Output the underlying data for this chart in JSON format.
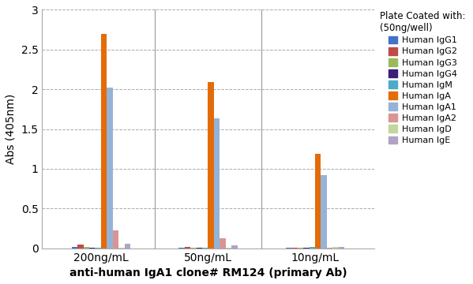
{
  "title": "",
  "xlabel": "anti-human IgA1 clone# RM124 (primary Ab)",
  "ylabel": "Abs (405nm)",
  "legend_title": "Plate Coated with:\n(50ng/well)",
  "groups": [
    "200ng/mL",
    "50ng/mL",
    "10ng/mL"
  ],
  "series": [
    {
      "label": "Human IgG1",
      "color": "#4472C4",
      "values": [
        0.02,
        0.01,
        0.01
      ]
    },
    {
      "label": "Human IgG2",
      "color": "#BE4B48",
      "values": [
        0.05,
        0.02,
        0.01
      ]
    },
    {
      "label": "Human IgG3",
      "color": "#9BBB59",
      "values": [
        0.02,
        0.01,
        0.01
      ]
    },
    {
      "label": "Human IgG4",
      "color": "#3B1F7A",
      "values": [
        0.01,
        0.01,
        0.01
      ]
    },
    {
      "label": "Human IgM",
      "color": "#4BACC6",
      "values": [
        0.01,
        0.01,
        0.02
      ]
    },
    {
      "label": "Human IgA",
      "color": "#E36C09",
      "values": [
        2.7,
        2.09,
        1.19
      ]
    },
    {
      "label": "Human IgA1",
      "color": "#95B3D7",
      "values": [
        2.02,
        1.63,
        0.92
      ]
    },
    {
      "label": "Human IgA2",
      "color": "#D99594",
      "values": [
        0.22,
        0.13,
        0.01
      ]
    },
    {
      "label": "Human IgD",
      "color": "#C3D69B",
      "values": [
        0.01,
        0.01,
        0.02
      ]
    },
    {
      "label": "Human IgE",
      "color": "#B2A2C7",
      "values": [
        0.06,
        0.04,
        0.02
      ]
    }
  ],
  "ylim": [
    0,
    3.0
  ],
  "yticks": [
    0,
    0.5,
    1.0,
    1.5,
    2.0,
    2.5,
    3.0
  ],
  "background_color": "#FFFFFF",
  "grid_color": "#AAAAAA",
  "bar_width": 0.055,
  "group_centers": [
    1.0,
    2.0,
    3.0
  ]
}
